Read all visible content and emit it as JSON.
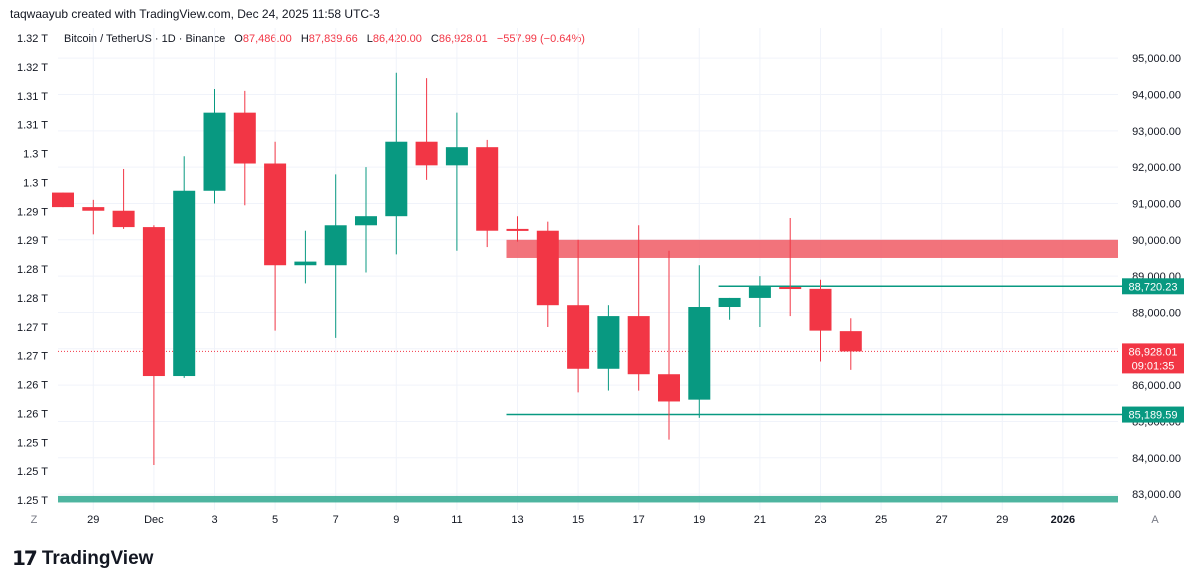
{
  "header": {
    "credit": "taqwaayub created with TradingView.com, Dec 24, 2025 11:58 UTC-3"
  },
  "legend": {
    "symbol": "Bitcoin / TetherUS · 1D · Binance",
    "open_label": "O",
    "open": "87,486.00",
    "high_label": "H",
    "high": "87,839.66",
    "low_label": "L",
    "low": "86,420.00",
    "close_label": "C",
    "close": "86,928.01",
    "change": "−557.99 (−0.64%)"
  },
  "brand": {
    "name": "TradingView"
  },
  "colors": {
    "up": "#089981",
    "down": "#f23645",
    "zone": "#f05a64",
    "grid": "#f0f3fa"
  },
  "chart_data": {
    "type": "candlestick",
    "title": "Bitcoin / TetherUS · 1D · Binance",
    "ylim": [
      82700,
      95500
    ],
    "y_ticks": [
      83000,
      84000,
      85000,
      86000,
      87000,
      88000,
      89000,
      90000,
      91000,
      92000,
      93000,
      94000,
      95000
    ],
    "y_tick_labels": [
      "83,000.00",
      "84,000.00",
      "85,000.00",
      "86,000.00",
      "87,000.00",
      "88,000.00",
      "89,000.00",
      "90,000.00",
      "91,000.00",
      "92,000.00",
      "93,000.00",
      "94,000.00",
      "95,000.00"
    ],
    "left_scale_labels": [
      "1.32 T",
      "1.32 T",
      "1.31 T",
      "1.31 T",
      "1.3 T",
      "1.3 T",
      "1.29 T",
      "1.29 T",
      "1.28 T",
      "1.28 T",
      "1.27 T",
      "1.27 T",
      "1.26 T",
      "1.26 T",
      "1.25 T",
      "1.25 T",
      "1.25 T"
    ],
    "x_ticks": [
      {
        "i": 1,
        "label": "29"
      },
      {
        "i": 3,
        "label": "Dec"
      },
      {
        "i": 5,
        "label": "3"
      },
      {
        "i": 7,
        "label": "5"
      },
      {
        "i": 9,
        "label": "7"
      },
      {
        "i": 11,
        "label": "9"
      },
      {
        "i": 13,
        "label": "11"
      },
      {
        "i": 15,
        "label": "13"
      },
      {
        "i": 17,
        "label": "15"
      },
      {
        "i": 19,
        "label": "17"
      },
      {
        "i": 21,
        "label": "19"
      },
      {
        "i": 23,
        "label": "21"
      },
      {
        "i": 25,
        "label": "23"
      },
      {
        "i": 27,
        "label": "25"
      },
      {
        "i": 29,
        "label": "27"
      },
      {
        "i": 31,
        "label": "29"
      },
      {
        "i": 33,
        "label": "2026"
      }
    ],
    "x_corner_left": "Z",
    "x_corner_right": "A",
    "candles": [
      {
        "date": "Nov 28",
        "o": 91300,
        "h": 91300,
        "l": 90900,
        "c": 90900
      },
      {
        "date": "Nov 29",
        "o": 90900,
        "h": 91100,
        "l": 90150,
        "c": 90800
      },
      {
        "date": "Nov 30",
        "o": 90800,
        "h": 91950,
        "l": 90300,
        "c": 90350
      },
      {
        "date": "Dec 1",
        "o": 90350,
        "h": 90400,
        "l": 83800,
        "c": 86250
      },
      {
        "date": "Dec 2",
        "o": 86250,
        "h": 92300,
        "l": 86200,
        "c": 91350
      },
      {
        "date": "Dec 3",
        "o": 91350,
        "h": 94150,
        "l": 91000,
        "c": 93500
      },
      {
        "date": "Dec 4",
        "o": 93500,
        "h": 94100,
        "l": 90950,
        "c": 92100
      },
      {
        "date": "Dec 5",
        "o": 92100,
        "h": 92700,
        "l": 87500,
        "c": 89300
      },
      {
        "date": "Dec 6",
        "o": 89300,
        "h": 90250,
        "l": 88800,
        "c": 89400
      },
      {
        "date": "Dec 7",
        "o": 89300,
        "h": 91800,
        "l": 87300,
        "c": 90400
      },
      {
        "date": "Dec 8",
        "o": 90400,
        "h": 92000,
        "l": 89100,
        "c": 90650
      },
      {
        "date": "Dec 9",
        "o": 90650,
        "h": 94600,
        "l": 89600,
        "c": 92700
      },
      {
        "date": "Dec 10",
        "o": 92700,
        "h": 94450,
        "l": 91650,
        "c": 92050
      },
      {
        "date": "Dec 11",
        "o": 92050,
        "h": 93500,
        "l": 89700,
        "c": 92550
      },
      {
        "date": "Dec 12",
        "o": 92550,
        "h": 92750,
        "l": 89800,
        "c": 90250
      },
      {
        "date": "Dec 13",
        "o": 90300,
        "h": 90650,
        "l": 89950,
        "c": 90250
      },
      {
        "date": "Dec 14",
        "o": 90250,
        "h": 90500,
        "l": 87600,
        "c": 88200
      },
      {
        "date": "Dec 15",
        "o": 88200,
        "h": 90000,
        "l": 85800,
        "c": 86450
      },
      {
        "date": "Dec 16",
        "o": 86450,
        "h": 88200,
        "l": 85850,
        "c": 87900
      },
      {
        "date": "Dec 17",
        "o": 87900,
        "h": 90400,
        "l": 85850,
        "c": 86300
      },
      {
        "date": "Dec 18",
        "o": 86300,
        "h": 89700,
        "l": 84500,
        "c": 85550
      },
      {
        "date": "Dec 19",
        "o": 85600,
        "h": 89300,
        "l": 85100,
        "c": 88150
      },
      {
        "date": "Dec 20",
        "o": 88150,
        "h": 88400,
        "l": 87800,
        "c": 88400
      },
      {
        "date": "Dec 21",
        "o": 88400,
        "h": 89000,
        "l": 87600,
        "c": 88700
      },
      {
        "date": "Dec 22",
        "o": 88700,
        "h": 90600,
        "l": 87900,
        "c": 88650
      },
      {
        "date": "Dec 23",
        "o": 88650,
        "h": 88900,
        "l": 86650,
        "c": 87500
      },
      {
        "date": "Dec 24",
        "o": 87486,
        "h": 87840,
        "l": 86420,
        "c": 86928
      }
    ],
    "resistance_zone": {
      "y_top": 90000,
      "y_bottom": 89500,
      "from_index": 15
    },
    "support_lines": [
      {
        "y": 88720.23,
        "label": "88,720.23",
        "from_index": 22
      },
      {
        "y": 85189.59,
        "label": "85,189.59",
        "from_index": 15
      }
    ],
    "last_price": {
      "y": 86928.01,
      "label": "86,928.01",
      "countdown": "09:01:35"
    },
    "bottom_band": {
      "y_top": 82950,
      "y_bottom": 82770
    }
  }
}
